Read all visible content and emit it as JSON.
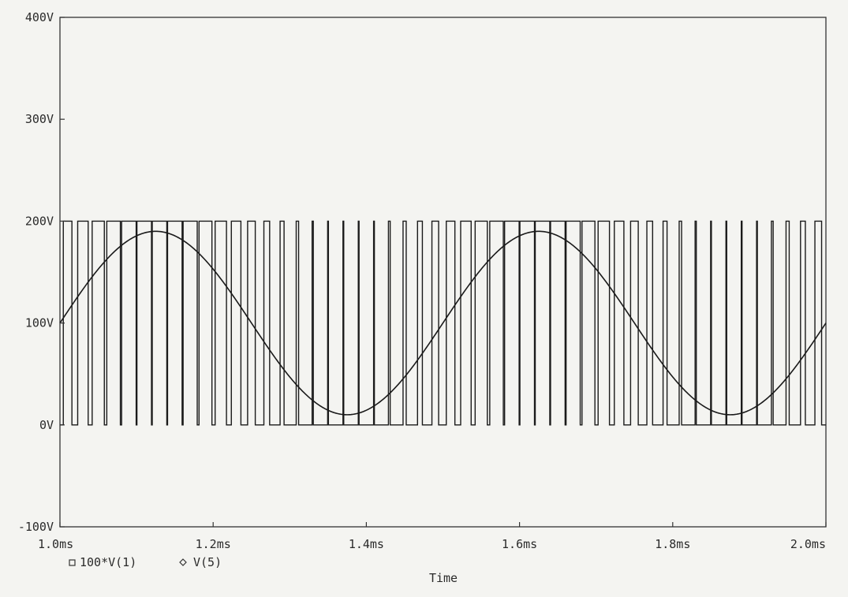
{
  "chart_data": {
    "type": "line",
    "title": "",
    "xlabel": "Time",
    "ylabel": "",
    "xlim": [
      1.0,
      2.0
    ],
    "ylim": [
      -100,
      400
    ],
    "x_unit": "ms",
    "y_unit": "V",
    "x_ticks": [
      1.0,
      1.2,
      1.4,
      1.6,
      1.8,
      2.0
    ],
    "x_tick_labels": [
      "1.0ms",
      "1.2ms",
      "1.4ms",
      "1.6ms",
      "1.8ms",
      "2.0ms"
    ],
    "y_ticks": [
      -100,
      0,
      100,
      200,
      300,
      400
    ],
    "y_tick_labels": [
      "-100V",
      "0V",
      "100V",
      "200V",
      "300V",
      "400V"
    ],
    "grid": false,
    "legend_position": "bottom-left",
    "series": [
      {
        "name": "100*V(1)",
        "marker": "square",
        "kind": "PWM square wave",
        "low": 0,
        "high": 200,
        "pulse_period_ms": 0.02,
        "modulation_period_ms": 0.5,
        "duty_cycle_range": [
          0.05,
          0.95
        ],
        "color": "#1a1a1a"
      },
      {
        "name": "V(5)",
        "marker": "diamond",
        "kind": "sine",
        "offset": 100,
        "amplitude": 90,
        "period_ms": 0.5,
        "peak_at_ms": 1.125,
        "min": 10,
        "max": 190,
        "color": "#1a1a1a"
      }
    ]
  }
}
